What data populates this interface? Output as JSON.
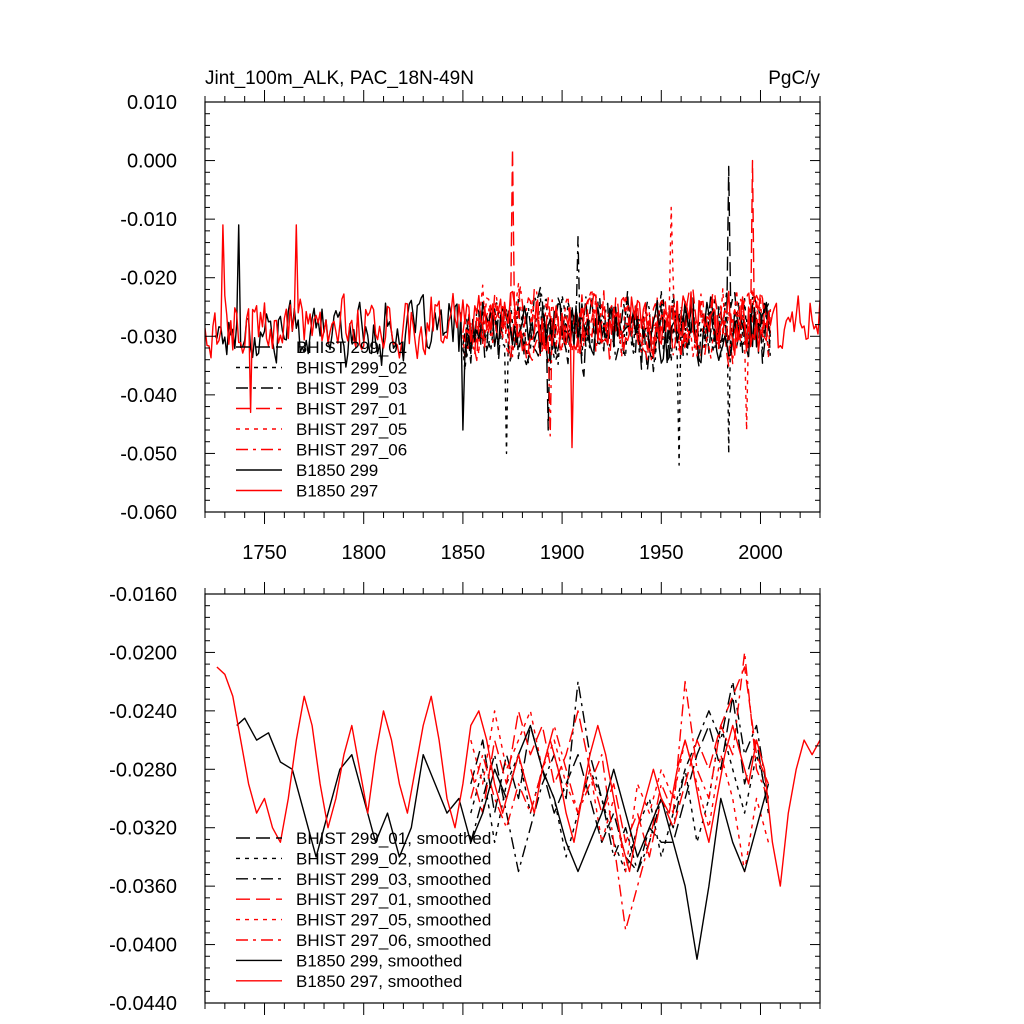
{
  "chart_data": [
    {
      "type": "line",
      "title": "Jint_100m_ALK, PAC_18N-49N",
      "units": "PgC/y",
      "xlabel": "",
      "ylabel": "",
      "xlim": [
        1720,
        2030
      ],
      "ylim": [
        -0.06,
        0.01
      ],
      "grid": false,
      "legend_placement": "bottom-left",
      "x_ticks": [
        1750,
        1800,
        1850,
        1900,
        1950,
        2000
      ],
      "y_ticks": [
        0.01,
        0.0,
        -0.01,
        -0.02,
        -0.03,
        -0.04,
        -0.05,
        -0.06
      ],
      "x_tick_labels": [
        "1750",
        "1800",
        "1850",
        "1900",
        "1950",
        "2000"
      ],
      "y_tick_labels": [
        "0.010",
        "0.000",
        "-0.010",
        "-0.020",
        "-0.030",
        "-0.040",
        "-0.050",
        "-0.060"
      ],
      "series": [
        {
          "name": "BHIST 299_01",
          "color": "#000000",
          "dash": "longdash",
          "x_range": [
            1850,
            2005
          ],
          "mean": -0.029,
          "amp": 0.007,
          "seed": 11,
          "peaks": [
            [
              1984,
              -0.001
            ],
            [
              1893,
              -0.046
            ]
          ]
        },
        {
          "name": "BHIST 299_02",
          "color": "#000000",
          "dash": "dotted",
          "x_range": [
            1850,
            2005
          ],
          "mean": -0.029,
          "amp": 0.007,
          "seed": 12,
          "peaks": [
            [
              1872,
              -0.05
            ],
            [
              1959,
              -0.052
            ],
            [
              1984,
              -0.05
            ]
          ]
        },
        {
          "name": "BHIST 299_03",
          "color": "#000000",
          "dash": "dashdot",
          "x_range": [
            1850,
            2005
          ],
          "mean": -0.029,
          "amp": 0.007,
          "seed": 13,
          "peaks": [
            [
              1908,
              -0.013
            ]
          ]
        },
        {
          "name": "BHIST 297_01",
          "color": "#ff0000",
          "dash": "longdash",
          "x_range": [
            1850,
            2005
          ],
          "mean": -0.028,
          "amp": 0.007,
          "seed": 14,
          "peaks": [
            [
              1875,
              0.002
            ],
            [
              1996,
              0.0
            ]
          ]
        },
        {
          "name": "BHIST 297_05",
          "color": "#ff0000",
          "dash": "dotted",
          "x_range": [
            1850,
            2005
          ],
          "mean": -0.028,
          "amp": 0.007,
          "seed": 15,
          "peaks": [
            [
              1955,
              -0.008
            ],
            [
              1993,
              -0.046
            ]
          ]
        },
        {
          "name": "BHIST 297_06",
          "color": "#ff0000",
          "dash": "dashdot",
          "x_range": [
            1850,
            2005
          ],
          "mean": -0.028,
          "amp": 0.007,
          "seed": 16,
          "peaks": [
            [
              1894,
              -0.047
            ]
          ]
        },
        {
          "name": "B1850 299",
          "color": "#000000",
          "dash": "solid",
          "x_range": [
            1725,
            2005
          ],
          "mean": -0.029,
          "amp": 0.006,
          "seed": 17,
          "peaks": [
            [
              1737,
              -0.011
            ],
            [
              1850,
              -0.046
            ]
          ]
        },
        {
          "name": "B1850 297",
          "color": "#ff0000",
          "dash": "solid",
          "x_range": [
            1720,
            2030
          ],
          "mean": -0.028,
          "amp": 0.006,
          "seed": 18,
          "peaks": [
            [
              1729,
              -0.011
            ],
            [
              1766,
              -0.011
            ],
            [
              1743,
              -0.043
            ],
            [
              1905,
              -0.049
            ]
          ]
        }
      ]
    },
    {
      "type": "line",
      "title": "",
      "xlabel": "",
      "ylabel": "",
      "xlim": [
        1720,
        2030
      ],
      "ylim": [
        -0.044,
        -0.016
      ],
      "grid": false,
      "legend_placement": "bottom-left",
      "x_ticks": [
        1750,
        1800,
        1850,
        1900,
        1950,
        2000
      ],
      "y_ticks": [
        -0.016,
        -0.02,
        -0.024,
        -0.028,
        -0.032,
        -0.036,
        -0.04,
        -0.044
      ],
      "y_tick_labels": [
        "-0.0160",
        "-0.0200",
        "-0.0240",
        "-0.0280",
        "-0.0320",
        "-0.0360",
        "-0.0400",
        "-0.0440"
      ],
      "series": [
        {
          "name": "BHIST 299_01, smoothed",
          "color": "#000000",
          "dash": "longdash",
          "x": [
            1854,
            1860,
            1866,
            1872,
            1878,
            1884,
            1890,
            1896,
            1902,
            1908,
            1914,
            1920,
            1926,
            1932,
            1938,
            1944,
            1950,
            1956,
            1962,
            1968,
            1974,
            1980,
            1986,
            1992,
            1998,
            2004
          ],
          "y": [
            -0.029,
            -0.026,
            -0.031,
            -0.027,
            -0.03,
            -0.025,
            -0.028,
            -0.031,
            -0.029,
            -0.027,
            -0.03,
            -0.033,
            -0.031,
            -0.034,
            -0.035,
            -0.032,
            -0.033,
            -0.033,
            -0.03,
            -0.027,
            -0.025,
            -0.028,
            -0.023,
            -0.029,
            -0.026,
            -0.031
          ]
        },
        {
          "name": "BHIST 299_02, smoothed",
          "color": "#000000",
          "dash": "dotted",
          "x": [
            1854,
            1860,
            1866,
            1872,
            1878,
            1884,
            1890,
            1896,
            1902,
            1908,
            1914,
            1920,
            1926,
            1932,
            1938,
            1944,
            1950,
            1956,
            1962,
            1968,
            1974,
            1980,
            1986,
            1992,
            1998,
            2004
          ],
          "y": [
            -0.031,
            -0.028,
            -0.033,
            -0.029,
            -0.027,
            -0.031,
            -0.028,
            -0.03,
            -0.034,
            -0.031,
            -0.028,
            -0.03,
            -0.033,
            -0.035,
            -0.032,
            -0.03,
            -0.034,
            -0.031,
            -0.028,
            -0.033,
            -0.03,
            -0.025,
            -0.028,
            -0.031,
            -0.027,
            -0.03
          ]
        },
        {
          "name": "BHIST 299_03, smoothed",
          "color": "#000000",
          "dash": "dashdot",
          "x": [
            1854,
            1860,
            1866,
            1872,
            1878,
            1884,
            1890,
            1896,
            1902,
            1908,
            1914,
            1920,
            1926,
            1932,
            1938,
            1944,
            1950,
            1956,
            1962,
            1968,
            1974,
            1980,
            1986,
            1992,
            1998,
            2004
          ],
          "y": [
            -0.033,
            -0.03,
            -0.027,
            -0.031,
            -0.035,
            -0.032,
            -0.029,
            -0.027,
            -0.03,
            -0.022,
            -0.027,
            -0.03,
            -0.034,
            -0.032,
            -0.035,
            -0.033,
            -0.03,
            -0.032,
            -0.028,
            -0.026,
            -0.024,
            -0.026,
            -0.022,
            -0.027,
            -0.025,
            -0.03
          ]
        },
        {
          "name": "BHIST 297_01, smoothed",
          "color": "#ff0000",
          "dash": "longdash",
          "x": [
            1854,
            1860,
            1866,
            1872,
            1878,
            1884,
            1890,
            1896,
            1902,
            1908,
            1914,
            1920,
            1926,
            1932,
            1938,
            1944,
            1950,
            1956,
            1962,
            1968,
            1974,
            1980,
            1986,
            1992,
            1998,
            2004
          ],
          "y": [
            -0.028,
            -0.031,
            -0.026,
            -0.029,
            -0.024,
            -0.027,
            -0.025,
            -0.029,
            -0.027,
            -0.024,
            -0.028,
            -0.031,
            -0.029,
            -0.033,
            -0.031,
            -0.034,
            -0.03,
            -0.032,
            -0.029,
            -0.026,
            -0.028,
            -0.025,
            -0.023,
            -0.021,
            -0.027,
            -0.029
          ]
        },
        {
          "name": "BHIST 297_05, smoothed",
          "color": "#ff0000",
          "dash": "dotted",
          "x": [
            1854,
            1860,
            1866,
            1872,
            1878,
            1884,
            1890,
            1896,
            1902,
            1908,
            1914,
            1920,
            1926,
            1932,
            1938,
            1944,
            1950,
            1956,
            1962,
            1968,
            1974,
            1980,
            1986,
            1992,
            1998,
            2004
          ],
          "y": [
            -0.026,
            -0.029,
            -0.024,
            -0.028,
            -0.026,
            -0.024,
            -0.028,
            -0.026,
            -0.029,
            -0.031,
            -0.028,
            -0.033,
            -0.03,
            -0.035,
            -0.029,
            -0.031,
            -0.028,
            -0.03,
            -0.026,
            -0.029,
            -0.032,
            -0.027,
            -0.03,
            -0.035,
            -0.03,
            -0.033
          ]
        },
        {
          "name": "BHIST 297_06, smoothed",
          "color": "#ff0000",
          "dash": "dashdot",
          "x": [
            1854,
            1860,
            1866,
            1872,
            1878,
            1884,
            1890,
            1896,
            1902,
            1908,
            1914,
            1920,
            1926,
            1932,
            1938,
            1944,
            1950,
            1956,
            1962,
            1968,
            1974,
            1980,
            1986,
            1992,
            1998,
            2004
          ],
          "y": [
            -0.03,
            -0.027,
            -0.03,
            -0.032,
            -0.029,
            -0.031,
            -0.028,
            -0.025,
            -0.028,
            -0.031,
            -0.029,
            -0.027,
            -0.033,
            -0.039,
            -0.036,
            -0.033,
            -0.029,
            -0.031,
            -0.022,
            -0.028,
            -0.03,
            -0.025,
            -0.027,
            -0.02,
            -0.028,
            -0.03
          ]
        },
        {
          "name": "B1850 299, smoothed",
          "color": "#000000",
          "dash": "solid",
          "x": [
            1736,
            1740,
            1746,
            1752,
            1758,
            1764,
            1770,
            1776,
            1782,
            1788,
            1794,
            1800,
            1806,
            1812,
            1818,
            1824,
            1830,
            1836,
            1842,
            1848,
            1854,
            1860,
            1866,
            1872,
            1878,
            1884,
            1890,
            1896,
            1902,
            1908,
            1914,
            1920,
            1926,
            1932,
            1938,
            1944,
            1950,
            1956,
            1962,
            1968,
            1974,
            1980,
            1986,
            1992,
            1998,
            2004
          ],
          "y": [
            -0.025,
            -0.0245,
            -0.026,
            -0.0255,
            -0.0275,
            -0.028,
            -0.031,
            -0.034,
            -0.031,
            -0.028,
            -0.027,
            -0.03,
            -0.033,
            -0.031,
            -0.034,
            -0.032,
            -0.027,
            -0.029,
            -0.031,
            -0.03,
            -0.033,
            -0.031,
            -0.028,
            -0.03,
            -0.027,
            -0.025,
            -0.028,
            -0.03,
            -0.033,
            -0.035,
            -0.033,
            -0.031,
            -0.028,
            -0.031,
            -0.034,
            -0.032,
            -0.03,
            -0.033,
            -0.036,
            -0.041,
            -0.036,
            -0.03,
            -0.033,
            -0.035,
            -0.032,
            -0.029
          ]
        },
        {
          "name": "B1850 297, smoothed",
          "color": "#ff0000",
          "dash": "solid",
          "x": [
            1726,
            1730,
            1734,
            1738,
            1742,
            1746,
            1750,
            1754,
            1758,
            1762,
            1766,
            1770,
            1774,
            1778,
            1782,
            1786,
            1790,
            1794,
            1798,
            1802,
            1806,
            1810,
            1814,
            1818,
            1822,
            1826,
            1830,
            1834,
            1838,
            1842,
            1846,
            1850,
            1854,
            1858,
            1862,
            1866,
            1870,
            1874,
            1878,
            1882,
            1886,
            1890,
            1894,
            1898,
            1902,
            1906,
            1910,
            1914,
            1918,
            1922,
            1926,
            1930,
            1934,
            1938,
            1942,
            1946,
            1950,
            1954,
            1958,
            1962,
            1966,
            1970,
            1974,
            1978,
            1982,
            1986,
            1990,
            1994,
            1998,
            2002,
            2006,
            2010,
            2014,
            2018,
            2022,
            2026,
            2030
          ],
          "y": [
            -0.021,
            -0.0215,
            -0.023,
            -0.026,
            -0.029,
            -0.031,
            -0.03,
            -0.032,
            -0.033,
            -0.03,
            -0.026,
            -0.023,
            -0.025,
            -0.029,
            -0.032,
            -0.03,
            -0.027,
            -0.025,
            -0.028,
            -0.031,
            -0.027,
            -0.024,
            -0.026,
            -0.029,
            -0.031,
            -0.028,
            -0.025,
            -0.023,
            -0.026,
            -0.03,
            -0.032,
            -0.029,
            -0.025,
            -0.024,
            -0.026,
            -0.029,
            -0.031,
            -0.029,
            -0.027,
            -0.029,
            -0.031,
            -0.028,
            -0.026,
            -0.028,
            -0.031,
            -0.033,
            -0.03,
            -0.027,
            -0.025,
            -0.027,
            -0.03,
            -0.033,
            -0.035,
            -0.032,
            -0.03,
            -0.028,
            -0.03,
            -0.031,
            -0.028,
            -0.026,
            -0.028,
            -0.031,
            -0.033,
            -0.03,
            -0.027,
            -0.025,
            -0.027,
            -0.029,
            -0.026,
            -0.028,
            -0.033,
            -0.036,
            -0.031,
            -0.028,
            -0.026,
            -0.027,
            -0.026
          ]
        }
      ]
    }
  ]
}
